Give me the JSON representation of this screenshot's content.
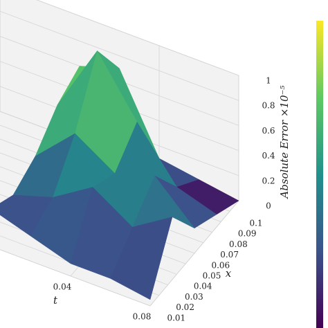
{
  "chart_data": {
    "type": "surface3d",
    "t_label": "t",
    "x_label": "x",
    "z_label": "Absolute Error ×10⁻⁵",
    "t": [
      0,
      0.02,
      0.04,
      0.06,
      0.08
    ],
    "x": [
      0,
      0.025,
      0.05,
      0.075,
      0.1
    ],
    "z": [
      [
        0.3,
        0.2,
        0.3,
        0.5,
        0.6
      ],
      [
        0.2,
        0.3,
        0.6,
        1.05,
        0.7
      ],
      [
        0.1,
        0.5,
        0.4,
        0.6,
        0.1
      ],
      [
        0.1,
        0.3,
        0.5,
        0.2,
        0.05
      ],
      [
        0.05,
        0.5,
        0.2,
        0.1,
        0.0
      ]
    ],
    "tlim": [
      -0.04,
      0.08
    ],
    "xlim": [
      0,
      0.1
    ],
    "zlim": [
      0,
      1
    ],
    "tticks": [
      0.04,
      0.08
    ],
    "xticks": [
      0.01,
      0.02,
      0.03,
      0.04,
      0.05,
      0.06,
      0.07,
      0.08,
      0.09,
      0.1
    ],
    "zticks": [
      0.0,
      0.2,
      0.4,
      0.6,
      0.8,
      1.0
    ],
    "colormap": "viridis",
    "grid": true
  }
}
